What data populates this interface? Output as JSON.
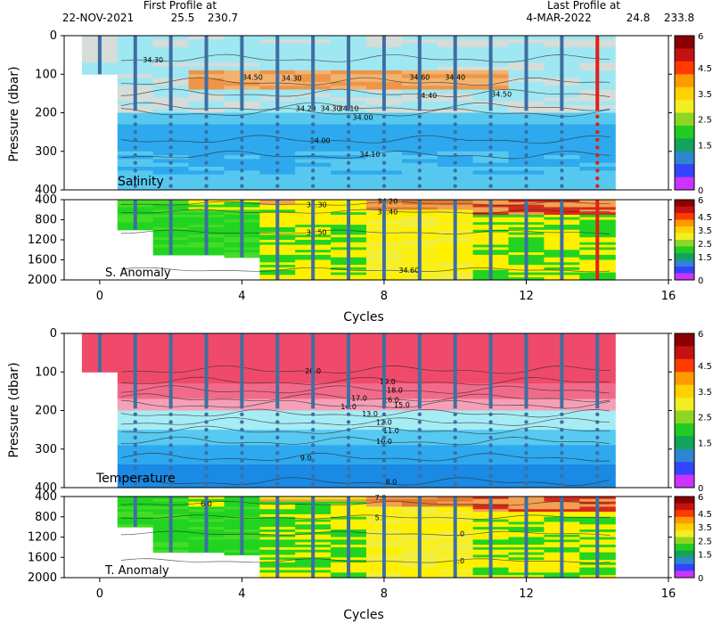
{
  "header": {
    "first_label": "First Profile at",
    "first_date": "22-NOV-2021",
    "first_lat": "25.5",
    "first_lon": "230.7",
    "last_label": "Last Profile at",
    "last_date": "4-MAR-2022",
    "last_lat": "24.8",
    "last_lon": "233.8"
  },
  "colors": {
    "salinity": [
      "#d6dcd8",
      "#9fe7f2",
      "#56c8f0",
      "#2ea9ee",
      "#1e8ee6",
      "#f2b370",
      "#ee9548"
    ],
    "temperature": [
      "#f04a6a",
      "#f26a8a",
      "#f5a0b6",
      "#a6ecf4",
      "#58c9f0",
      "#2ea8ee",
      "#1b8ae4"
    ],
    "anomaly": [
      "#21d421",
      "#45dc25",
      "#fff000",
      "#f2ee3c",
      "#f4a050",
      "#e27a30",
      "#d72a1a"
    ],
    "colorbar": [
      "#cc33ff",
      "#3344ff",
      "#2e86d1",
      "#11a45a",
      "#22cc22",
      "#8fd624",
      "#f2ee22",
      "#ffd100",
      "#ff9a00",
      "#ff3a00",
      "#c41212",
      "#8b0000"
    ],
    "profile_marker": "#3d6fa2",
    "last_profile_marker": "#e0201a"
  },
  "chart_data": [
    {
      "type": "heatmap",
      "name": "Salinity",
      "label": "Salinity",
      "ylabel": "Pressure (dbar)",
      "x_ticks": [
        0,
        4,
        8,
        12,
        16
      ],
      "y_ticks": [
        0,
        100,
        200,
        300,
        400
      ],
      "xlim": [
        -1,
        16
      ],
      "ylim": [
        400,
        0
      ],
      "cycles": [
        0,
        1,
        2,
        3,
        4,
        5,
        6,
        7,
        8,
        9,
        10,
        11,
        12,
        13,
        14
      ],
      "contours": [
        {
          "label": "34.30",
          "x": 1.5,
          "y": 62
        },
        {
          "label": "34.50",
          "x": 4.3,
          "y": 107
        },
        {
          "label": "34.30",
          "x": 5.4,
          "y": 110
        },
        {
          "label": "34.60",
          "x": 9.0,
          "y": 108
        },
        {
          "label": "34.40",
          "x": 10.0,
          "y": 107
        },
        {
          "label": "34.40",
          "x": 9.2,
          "y": 155
        },
        {
          "label": "34.50",
          "x": 11.3,
          "y": 152
        },
        {
          "label": "34.20",
          "x": 5.8,
          "y": 188
        },
        {
          "label": "34.30",
          "x": 6.5,
          "y": 188
        },
        {
          "label": "34.10",
          "x": 7.0,
          "y": 188
        },
        {
          "label": "34.00",
          "x": 7.4,
          "y": 212
        },
        {
          "label": "34.00",
          "x": 6.2,
          "y": 272
        },
        {
          "label": "34.10",
          "x": 7.6,
          "y": 307
        }
      ],
      "colorbar_ticks": [
        "6",
        "4.5",
        "3.5",
        "2.5",
        "1.5",
        "0"
      ]
    },
    {
      "type": "heatmap",
      "name": "S. Anomaly",
      "label": "S. Anomaly",
      "y_ticks": [
        400,
        800,
        1200,
        1600,
        2000
      ],
      "ylim": [
        2000,
        400
      ],
      "contours": [
        {
          "label": "34.30",
          "x": 6.1,
          "y": 500
        },
        {
          "label": "34.20",
          "x": 8.1,
          "y": 430
        },
        {
          "label": "34.40",
          "x": 8.1,
          "y": 640
        },
        {
          "label": "34.50",
          "x": 6.1,
          "y": 1050
        },
        {
          "label": "34.60",
          "x": 8.7,
          "y": 1800
        }
      ],
      "colorbar_ticks": [
        "6",
        "4.5",
        "3.5",
        "2.5",
        "1.5",
        "0"
      ]
    },
    {
      "type": "heatmap",
      "name": "Temperature",
      "label": "Temperature",
      "ylabel": "Pressure (dbar)",
      "x_ticks": [
        0,
        4,
        8,
        12,
        16
      ],
      "y_ticks": [
        0,
        100,
        200,
        300,
        400
      ],
      "xlim": [
        -1,
        16
      ],
      "ylim": [
        400,
        0
      ],
      "contours": [
        {
          "label": "20.0",
          "x": 6.0,
          "y": 97
        },
        {
          "label": "19.0",
          "x": 8.1,
          "y": 125
        },
        {
          "label": "18.0",
          "x": 8.3,
          "y": 147
        },
        {
          "label": "17.0",
          "x": 7.3,
          "y": 168
        },
        {
          "label": "16.0",
          "x": 8.2,
          "y": 172
        },
        {
          "label": "15.0",
          "x": 8.5,
          "y": 185
        },
        {
          "label": "14.0",
          "x": 7.0,
          "y": 190
        },
        {
          "label": "13.0",
          "x": 7.6,
          "y": 208
        },
        {
          "label": "12.0",
          "x": 8.0,
          "y": 230
        },
        {
          "label": "11.0",
          "x": 8.2,
          "y": 252
        },
        {
          "label": "10.0",
          "x": 8.0,
          "y": 280
        },
        {
          "label": "9.0",
          "x": 5.8,
          "y": 322
        },
        {
          "label": "8.0",
          "x": 8.2,
          "y": 385
        }
      ],
      "colorbar_ticks": [
        "6",
        "4.5",
        "3.5",
        "2.5",
        "1.5",
        "0"
      ]
    },
    {
      "type": "heatmap",
      "name": "T. Anomaly",
      "label": "T. Anomaly",
      "xlabel": "Cycles",
      "x_ticks": [
        0,
        4,
        8,
        12,
        16
      ],
      "y_ticks": [
        400,
        800,
        1200,
        1600,
        2000
      ],
      "ylim": [
        2000,
        400
      ],
      "contours": [
        {
          "label": "6.0",
          "x": 3.0,
          "y": 540
        },
        {
          "label": "7.0",
          "x": 7.9,
          "y": 420
        },
        {
          "label": "5.0",
          "x": 7.9,
          "y": 810
        },
        {
          "label": "4.0",
          "x": 10.1,
          "y": 1130
        },
        {
          "label": "3.0",
          "x": 10.1,
          "y": 1670
        }
      ],
      "colorbar_ticks": [
        "6",
        "4.5",
        "3.5",
        "2.5",
        "1.5",
        "0"
      ]
    }
  ]
}
